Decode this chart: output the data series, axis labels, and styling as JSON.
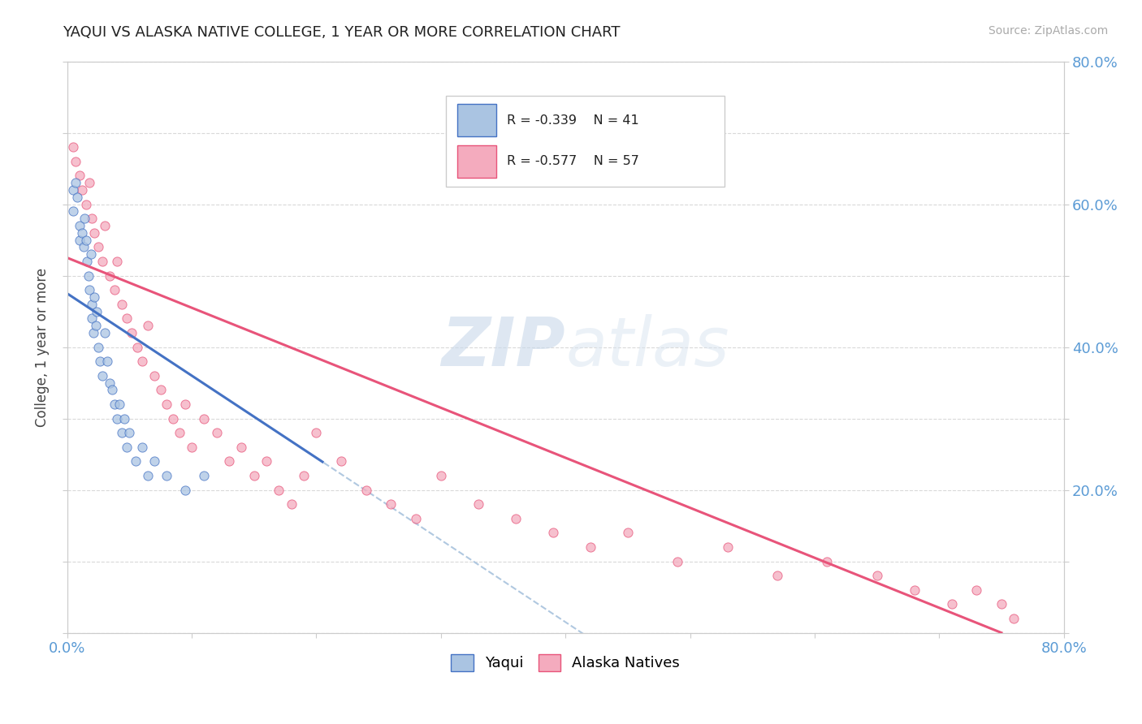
{
  "title": "YAQUI VS ALASKA NATIVE COLLEGE, 1 YEAR OR MORE CORRELATION CHART",
  "source_text": "Source: ZipAtlas.com",
  "ylabel": "College, 1 year or more",
  "xlim": [
    0.0,
    0.8
  ],
  "ylim": [
    0.0,
    0.8
  ],
  "xticks": [
    0.0,
    0.1,
    0.2,
    0.3,
    0.4,
    0.5,
    0.6,
    0.7,
    0.8
  ],
  "yticks": [
    0.0,
    0.1,
    0.2,
    0.3,
    0.4,
    0.5,
    0.6,
    0.7,
    0.8
  ],
  "legend_R1": "R = -0.339",
  "legend_N1": "N = 41",
  "legend_R2": "R = -0.577",
  "legend_N2": "N = 57",
  "color_yaqui": "#aac4e2",
  "color_alaska": "#f4abbe",
  "line_color_yaqui": "#4472c4",
  "line_color_alaska": "#e8547a",
  "line_color_diagonal": "#b0c8e0",
  "watermark_ZIP": "ZIP",
  "watermark_atlas": "atlas",
  "background_color": "#ffffff",
  "yaqui_x": [
    0.005,
    0.005,
    0.007,
    0.008,
    0.01,
    0.01,
    0.012,
    0.013,
    0.014,
    0.015,
    0.016,
    0.017,
    0.018,
    0.019,
    0.02,
    0.02,
    0.021,
    0.022,
    0.023,
    0.024,
    0.025,
    0.026,
    0.028,
    0.03,
    0.032,
    0.034,
    0.036,
    0.038,
    0.04,
    0.042,
    0.044,
    0.046,
    0.048,
    0.05,
    0.055,
    0.06,
    0.065,
    0.07,
    0.08,
    0.095,
    0.11
  ],
  "yaqui_y": [
    0.62,
    0.59,
    0.63,
    0.61,
    0.57,
    0.55,
    0.56,
    0.54,
    0.58,
    0.55,
    0.52,
    0.5,
    0.48,
    0.53,
    0.46,
    0.44,
    0.42,
    0.47,
    0.43,
    0.45,
    0.4,
    0.38,
    0.36,
    0.42,
    0.38,
    0.35,
    0.34,
    0.32,
    0.3,
    0.32,
    0.28,
    0.3,
    0.26,
    0.28,
    0.24,
    0.26,
    0.22,
    0.24,
    0.22,
    0.2,
    0.22
  ],
  "alaska_x": [
    0.005,
    0.007,
    0.01,
    0.012,
    0.015,
    0.018,
    0.02,
    0.022,
    0.025,
    0.028,
    0.03,
    0.034,
    0.038,
    0.04,
    0.044,
    0.048,
    0.052,
    0.056,
    0.06,
    0.065,
    0.07,
    0.075,
    0.08,
    0.085,
    0.09,
    0.095,
    0.1,
    0.11,
    0.12,
    0.13,
    0.14,
    0.15,
    0.16,
    0.17,
    0.18,
    0.19,
    0.2,
    0.22,
    0.24,
    0.26,
    0.28,
    0.3,
    0.33,
    0.36,
    0.39,
    0.42,
    0.45,
    0.49,
    0.53,
    0.57,
    0.61,
    0.65,
    0.68,
    0.71,
    0.73,
    0.75,
    0.76
  ],
  "alaska_y": [
    0.68,
    0.66,
    0.64,
    0.62,
    0.6,
    0.63,
    0.58,
    0.56,
    0.54,
    0.52,
    0.57,
    0.5,
    0.48,
    0.52,
    0.46,
    0.44,
    0.42,
    0.4,
    0.38,
    0.43,
    0.36,
    0.34,
    0.32,
    0.3,
    0.28,
    0.32,
    0.26,
    0.3,
    0.28,
    0.24,
    0.26,
    0.22,
    0.24,
    0.2,
    0.18,
    0.22,
    0.28,
    0.24,
    0.2,
    0.18,
    0.16,
    0.22,
    0.18,
    0.16,
    0.14,
    0.12,
    0.14,
    0.1,
    0.12,
    0.08,
    0.1,
    0.08,
    0.06,
    0.04,
    0.06,
    0.04,
    0.02
  ]
}
